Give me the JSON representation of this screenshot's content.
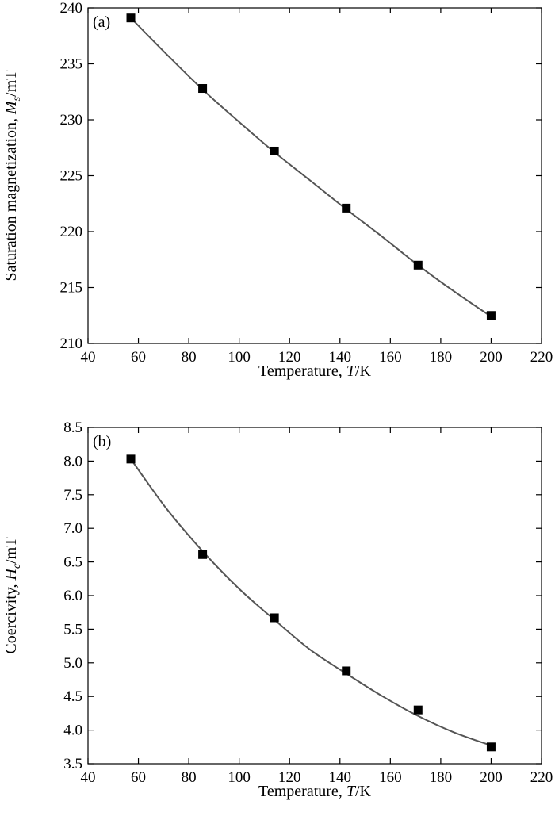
{
  "chart_data": [
    {
      "type": "scatter",
      "panel_label": "(a)",
      "xlabel_prefix": "Temperature, ",
      "xlabel_var": "T",
      "xlabel_suffix": "/K",
      "ylabel_prefix": "Saturation magnetization, ",
      "ylabel_var": "M",
      "ylabel_sub": "s",
      "ylabel_suffix": "/mT",
      "xlim": [
        40,
        220
      ],
      "ylim": [
        210,
        240
      ],
      "xticks": [
        40,
        60,
        80,
        100,
        120,
        140,
        160,
        180,
        200,
        220
      ],
      "yticks": [
        210,
        215,
        220,
        225,
        230,
        235,
        240
      ],
      "ytick_labels": [
        "210",
        "215",
        "220",
        "225",
        "230",
        "235",
        "240"
      ],
      "grid": false,
      "series": [
        {
          "points": [
            {
              "x": 57,
              "y": 239.1
            },
            {
              "x": 85.5,
              "y": 232.8
            },
            {
              "x": 114,
              "y": 227.2
            },
            {
              "x": 142.5,
              "y": 222.1
            },
            {
              "x": 171,
              "y": 217.0
            },
            {
              "x": 200,
              "y": 212.5
            }
          ],
          "fit": [
            {
              "x": 57,
              "y": 239.1
            },
            {
              "x": 71,
              "y": 235.9
            },
            {
              "x": 85.5,
              "y": 232.7
            },
            {
              "x": 100,
              "y": 229.8
            },
            {
              "x": 114,
              "y": 227.1
            },
            {
              "x": 128,
              "y": 224.6
            },
            {
              "x": 142.5,
              "y": 222.0
            },
            {
              "x": 157,
              "y": 219.5
            },
            {
              "x": 171,
              "y": 217.0
            },
            {
              "x": 185,
              "y": 214.7
            },
            {
              "x": 200,
              "y": 212.4
            }
          ]
        }
      ]
    },
    {
      "type": "scatter",
      "panel_label": "(b)",
      "xlabel_prefix": "Temperature, ",
      "xlabel_var": "T",
      "xlabel_suffix": "/K",
      "ylabel_prefix": "Coercivity, ",
      "ylabel_var": "H",
      "ylabel_sub": "c",
      "ylabel_suffix": "/mT",
      "xlim": [
        40,
        220
      ],
      "ylim": [
        3.5,
        8.5
      ],
      "xticks": [
        40,
        60,
        80,
        100,
        120,
        140,
        160,
        180,
        200,
        220
      ],
      "yticks": [
        3.5,
        4.0,
        4.5,
        5.0,
        5.5,
        6.0,
        6.5,
        7.0,
        7.5,
        8.0,
        8.5
      ],
      "ytick_labels": [
        "3.5",
        "4.0",
        "4.5",
        "5.0",
        "5.5",
        "6.0",
        "6.5",
        "7.0",
        "7.5",
        "8.0",
        "8.5"
      ],
      "grid": false,
      "series": [
        {
          "points": [
            {
              "x": 57,
              "y": 8.03
            },
            {
              "x": 85.5,
              "y": 6.61
            },
            {
              "x": 114,
              "y": 5.67
            },
            {
              "x": 142.5,
              "y": 4.88
            },
            {
              "x": 171,
              "y": 4.3
            },
            {
              "x": 200,
              "y": 3.75
            }
          ],
          "fit": [
            {
              "x": 57,
              "y": 8.03
            },
            {
              "x": 71,
              "y": 7.3
            },
            {
              "x": 85.5,
              "y": 6.66
            },
            {
              "x": 100,
              "y": 6.1
            },
            {
              "x": 114,
              "y": 5.64
            },
            {
              "x": 128,
              "y": 5.2
            },
            {
              "x": 142.5,
              "y": 4.84
            },
            {
              "x": 157,
              "y": 4.5
            },
            {
              "x": 171,
              "y": 4.21
            },
            {
              "x": 185,
              "y": 3.97
            },
            {
              "x": 200,
              "y": 3.77
            }
          ]
        }
      ]
    }
  ]
}
